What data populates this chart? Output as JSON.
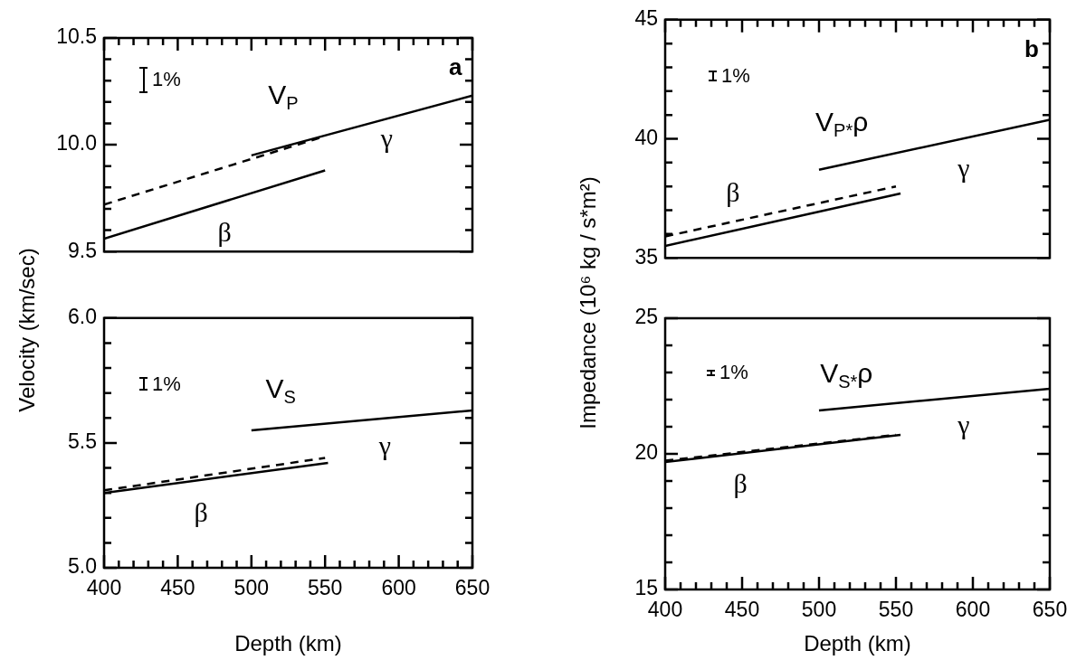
{
  "chart_data": [
    {
      "type": "line",
      "ylabel": "Velocity (km/sec)",
      "xlim": [
        400,
        650
      ],
      "ylim": [
        9.5,
        10.5
      ],
      "xticks": [
        {
          "value": 400,
          "label": null
        },
        {
          "value": 410,
          "label": null
        },
        {
          "value": 420,
          "label": null
        },
        {
          "value": 430,
          "label": null
        },
        {
          "value": 440,
          "label": null
        },
        {
          "value": 450,
          "label": null
        },
        {
          "value": 460,
          "label": null
        },
        {
          "value": 470,
          "label": null
        },
        {
          "value": 480,
          "label": null
        },
        {
          "value": 490,
          "label": null
        },
        {
          "value": 500,
          "label": null
        },
        {
          "value": 510,
          "label": null
        },
        {
          "value": 520,
          "label": null
        },
        {
          "value": 530,
          "label": null
        },
        {
          "value": 540,
          "label": null
        },
        {
          "value": 550,
          "label": null
        },
        {
          "value": 560,
          "label": null
        },
        {
          "value": 570,
          "label": null
        },
        {
          "value": 580,
          "label": null
        },
        {
          "value": 590,
          "label": null
        },
        {
          "value": 600,
          "label": null
        },
        {
          "value": 610,
          "label": null
        },
        {
          "value": 620,
          "label": null
        },
        {
          "value": 630,
          "label": null
        },
        {
          "value": 640,
          "label": null
        },
        {
          "value": 650,
          "label": null
        }
      ],
      "yticks": [
        9.5,
        {
          "value": 9.6,
          "label": null
        },
        {
          "value": 9.7,
          "label": null
        },
        {
          "value": 9.8,
          "label": null
        },
        {
          "value": 9.9,
          "label": null
        },
        {
          "value": 10,
          "label": "10.0"
        },
        {
          "value": 10.1,
          "label": null
        },
        {
          "value": 10.2,
          "label": null
        },
        {
          "value": 10.3,
          "label": null
        },
        {
          "value": 10.4,
          "label": null
        },
        10.5
      ],
      "tick_labels": "y",
      "series": [
        {
          "color": "#000000",
          "x": [
            400,
            550
          ],
          "values": [
            9.56,
            9.88
          ]
        },
        {
          "color": "#000000",
          "line_style": "dashed",
          "x": [
            400,
            550
          ],
          "values": [
            9.72,
            10.04
          ]
        },
        {
          "color": "#000000",
          "x": [
            500,
            650
          ],
          "values": [
            9.95,
            10.23
          ]
        }
      ],
      "annotations": [
        "1%",
        "a",
        "V$_{P}$",
        "γ",
        "β"
      ]
    },
    {
      "type": "line",
      "ylabel": "Impedance (10⁶ kg / s*m²)",
      "xlim": [
        400,
        650
      ],
      "ylim": [
        35,
        45
      ],
      "xticks": [
        {
          "value": 400,
          "label": null
        },
        {
          "value": 410,
          "label": null
        },
        {
          "value": 420,
          "label": null
        },
        {
          "value": 430,
          "label": null
        },
        {
          "value": 440,
          "label": null
        },
        {
          "value": 450,
          "label": null
        },
        {
          "value": 460,
          "label": null
        },
        {
          "value": 470,
          "label": null
        },
        {
          "value": 480,
          "label": null
        },
        {
          "value": 490,
          "label": null
        },
        {
          "value": 500,
          "label": null
        },
        {
          "value": 510,
          "label": null
        },
        {
          "value": 520,
          "label": null
        },
        {
          "value": 530,
          "label": null
        },
        {
          "value": 540,
          "label": null
        },
        {
          "value": 550,
          "label": null
        },
        {
          "value": 560,
          "label": null
        },
        {
          "value": 570,
          "label": null
        },
        {
          "value": 580,
          "label": null
        },
        {
          "value": 590,
          "label": null
        },
        {
          "value": 600,
          "label": null
        },
        {
          "value": 610,
          "label": null
        },
        {
          "value": 620,
          "label": null
        },
        {
          "value": 630,
          "label": null
        },
        {
          "value": 640,
          "label": null
        },
        {
          "value": 650,
          "label": null
        }
      ],
      "yticks": [
        35,
        {
          "value": 36,
          "label": null
        },
        {
          "value": 37,
          "label": null
        },
        {
          "value": 38,
          "label": null
        },
        {
          "value": 39,
          "label": null
        },
        40,
        {
          "value": 41,
          "label": null
        },
        {
          "value": 42,
          "label": null
        },
        {
          "value": 43,
          "label": null
        },
        {
          "value": 44,
          "label": null
        },
        45
      ],
      "tick_labels": "y",
      "series": [
        {
          "color": "#000000",
          "x": [
            400,
            553
          ],
          "values": [
            35.5,
            37.7
          ]
        },
        {
          "color": "#000000",
          "line_style": "dashed",
          "x": [
            400,
            550
          ],
          "values": [
            35.9,
            38.0
          ]
        },
        {
          "color": "#000000",
          "x": [
            500,
            650
          ],
          "values": [
            38.7,
            40.8
          ]
        }
      ],
      "annotations": [
        "1%",
        "b",
        "V$_{P*}$ρ",
        "γ",
        "β"
      ]
    },
    {
      "type": "line",
      "xlabel": "Depth (km)",
      "xlim": [
        400,
        650
      ],
      "ylim": [
        5,
        6
      ],
      "xticks": [
        400,
        {
          "value": 410,
          "label": null
        },
        {
          "value": 420,
          "label": null
        },
        {
          "value": 430,
          "label": null
        },
        {
          "value": 440,
          "label": null
        },
        450,
        {
          "value": 460,
          "label": null
        },
        {
          "value": 470,
          "label": null
        },
        {
          "value": 480,
          "label": null
        },
        {
          "value": 490,
          "label": null
        },
        500,
        {
          "value": 510,
          "label": null
        },
        {
          "value": 520,
          "label": null
        },
        {
          "value": 530,
          "label": null
        },
        {
          "value": 540,
          "label": null
        },
        550,
        {
          "value": 560,
          "label": null
        },
        {
          "value": 570,
          "label": null
        },
        {
          "value": 580,
          "label": null
        },
        {
          "value": 590,
          "label": null
        },
        600,
        {
          "value": 610,
          "label": null
        },
        {
          "value": 620,
          "label": null
        },
        {
          "value": 630,
          "label": null
        },
        {
          "value": 640,
          "label": null
        },
        650
      ],
      "yticks": [
        {
          "value": 5,
          "label": "5.0"
        },
        {
          "value": 5.1,
          "label": null
        },
        {
          "value": 5.2,
          "label": null
        },
        {
          "value": 5.3,
          "label": null
        },
        {
          "value": 5.4,
          "label": null
        },
        5.5,
        {
          "value": 5.6,
          "label": null
        },
        {
          "value": 5.7,
          "label": null
        },
        {
          "value": 5.8,
          "label": null
        },
        {
          "value": 5.9,
          "label": null
        },
        {
          "value": 6,
          "label": "6.0"
        }
      ],
      "series": [
        {
          "color": "#000000",
          "x": [
            400,
            552
          ],
          "values": [
            5.3,
            5.42
          ]
        },
        {
          "color": "#000000",
          "line_style": "dashed",
          "x": [
            400,
            550
          ],
          "values": [
            5.31,
            5.44
          ]
        },
        {
          "color": "#000000",
          "x": [
            500,
            650
          ],
          "values": [
            5.55,
            5.63
          ]
        }
      ],
      "annotations": [
        "1%",
        "V$_{S}$",
        "γ",
        "β"
      ]
    },
    {
      "type": "line",
      "xlabel": "Depth (km)",
      "xlim": [
        400,
        650
      ],
      "ylim": [
        15,
        25
      ],
      "xticks": [
        400,
        {
          "value": 410,
          "label": null
        },
        {
          "value": 420,
          "label": null
        },
        {
          "value": 430,
          "label": null
        },
        {
          "value": 440,
          "label": null
        },
        450,
        {
          "value": 460,
          "label": null
        },
        {
          "value": 470,
          "label": null
        },
        {
          "value": 480,
          "label": null
        },
        {
          "value": 490,
          "label": null
        },
        500,
        {
          "value": 510,
          "label": null
        },
        {
          "value": 520,
          "label": null
        },
        {
          "value": 530,
          "label": null
        },
        {
          "value": 540,
          "label": null
        },
        550,
        {
          "value": 560,
          "label": null
        },
        {
          "value": 570,
          "label": null
        },
        {
          "value": 580,
          "label": null
        },
        {
          "value": 590,
          "label": null
        },
        600,
        {
          "value": 610,
          "label": null
        },
        {
          "value": 620,
          "label": null
        },
        {
          "value": 630,
          "label": null
        },
        {
          "value": 640,
          "label": null
        },
        650
      ],
      "yticks": [
        15,
        {
          "value": 16,
          "label": null
        },
        {
          "value": 17,
          "label": null
        },
        {
          "value": 18,
          "label": null
        },
        {
          "value": 19,
          "label": null
        },
        20,
        {
          "value": 21,
          "label": null
        },
        {
          "value": 22,
          "label": null
        },
        {
          "value": 23,
          "label": null
        },
        {
          "value": 24,
          "label": null
        },
        25
      ],
      "series": [
        {
          "color": "#000000",
          "x": [
            400,
            553
          ],
          "values": [
            19.7,
            20.7
          ]
        },
        {
          "color": "#000000",
          "line_style": "dashed",
          "x": [
            400,
            550
          ],
          "values": [
            19.75,
            20.7
          ]
        },
        {
          "color": "#000000",
          "x": [
            500,
            650
          ],
          "values": [
            21.6,
            22.4
          ]
        }
      ],
      "annotations": [
        "1%",
        "V$_{S*}$ρ",
        "γ",
        "β"
      ]
    }
  ]
}
